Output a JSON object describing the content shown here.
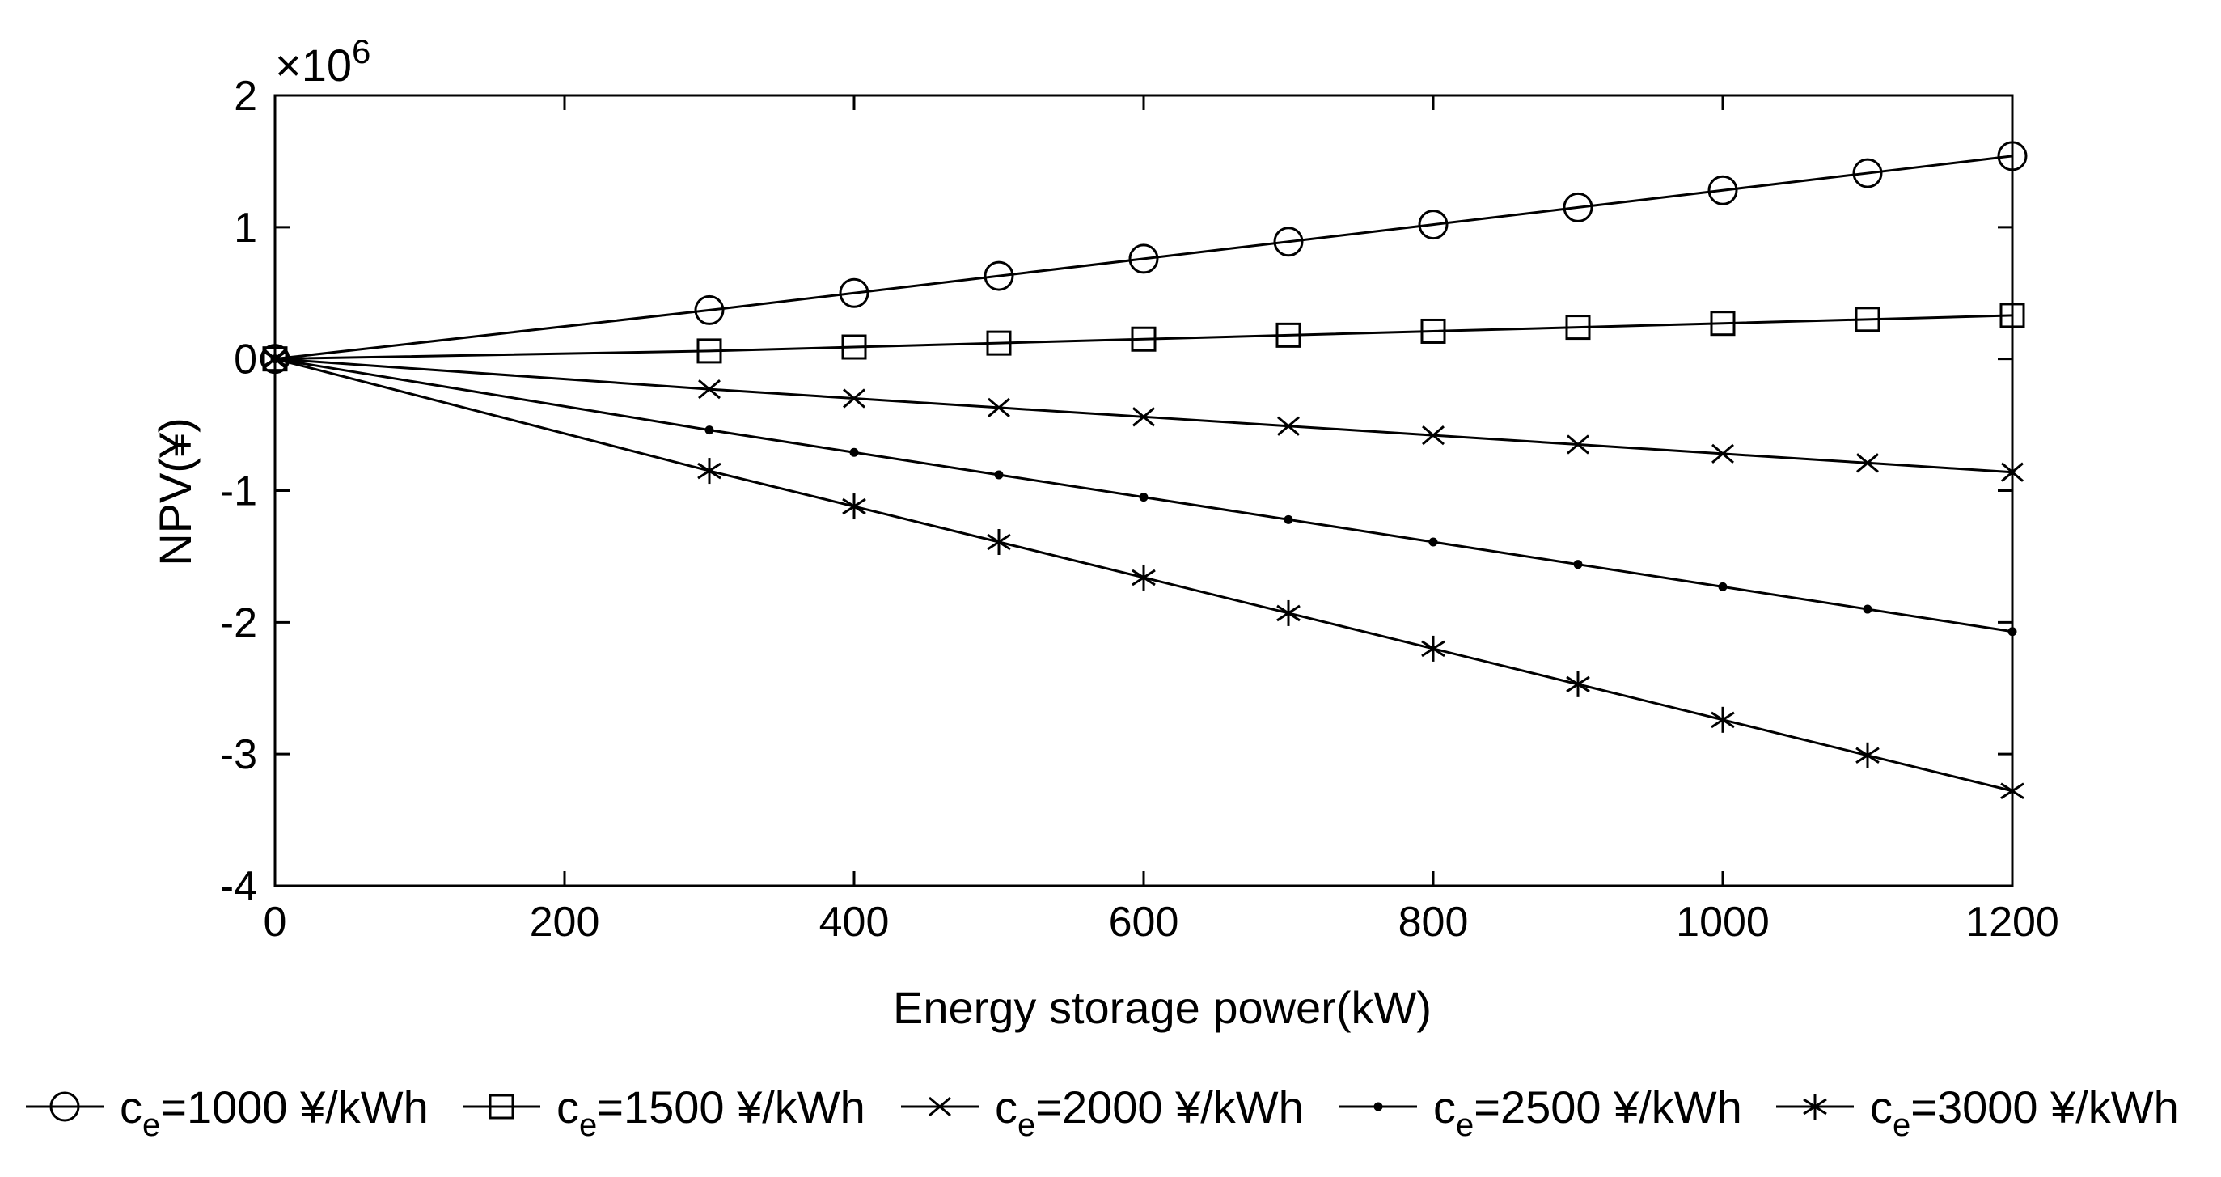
{
  "chart_data": {
    "type": "line",
    "title": "",
    "xlabel": "Energy storage power(kW)",
    "ylabel": "NPV(¥)",
    "y_multiplier": "×10",
    "y_multiplier_exp": "6",
    "xlim": [
      0,
      1200
    ],
    "ylim": [
      -4,
      2
    ],
    "xticks": [
      0,
      200,
      400,
      600,
      800,
      1000,
      1200
    ],
    "xtick_labels": [
      "0",
      "200",
      "400",
      "600",
      "800",
      "1000",
      "1200"
    ],
    "yticks": [
      -4,
      -3,
      -2,
      -1,
      0,
      1,
      2
    ],
    "ytick_labels": [
      "-4",
      "-3",
      "-2",
      "-1",
      "0",
      "1",
      "2"
    ],
    "grid": false,
    "legend_position": "bottom",
    "x": [
      0,
      300,
      400,
      500,
      600,
      700,
      800,
      900,
      1000,
      1100,
      1200
    ],
    "series": [
      {
        "name": "=1000 ¥/kWh",
        "legend_prefix": "c",
        "legend_sub": "e",
        "marker": "circle",
        "values": [
          0,
          0.37,
          0.5,
          0.63,
          0.76,
          0.89,
          1.02,
          1.15,
          1.28,
          1.41,
          1.54
        ]
      },
      {
        "name": "=1500 ¥/kWh",
        "legend_prefix": "c",
        "legend_sub": "e",
        "marker": "square",
        "values": [
          0,
          0.06,
          0.09,
          0.12,
          0.15,
          0.18,
          0.21,
          0.24,
          0.27,
          0.3,
          0.33
        ]
      },
      {
        "name": "=2000 ¥/kWh",
        "legend_prefix": "c",
        "legend_sub": "e",
        "marker": "x",
        "values": [
          0,
          -0.23,
          -0.3,
          -0.37,
          -0.44,
          -0.51,
          -0.58,
          -0.65,
          -0.72,
          -0.79,
          -0.86
        ]
      },
      {
        "name": "=2500 ¥/kWh",
        "legend_prefix": "c",
        "legend_sub": "e",
        "marker": "dot",
        "values": [
          0,
          -0.54,
          -0.71,
          -0.88,
          -1.05,
          -1.22,
          -1.39,
          -1.56,
          -1.73,
          -1.9,
          -2.07
        ]
      },
      {
        "name": "=3000 ¥/kWh",
        "legend_prefix": "c",
        "legend_sub": "e",
        "marker": "asterisk",
        "values": [
          0,
          -0.85,
          -1.12,
          -1.39,
          -1.66,
          -1.93,
          -2.2,
          -2.47,
          -2.74,
          -3.01,
          -3.28
        ]
      }
    ]
  }
}
